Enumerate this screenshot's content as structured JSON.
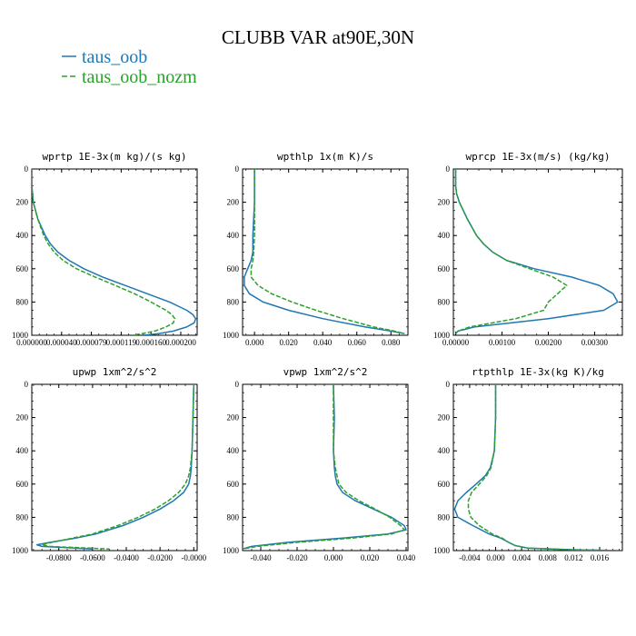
{
  "figure": {
    "title": "CLUBB VAR at90E,30N",
    "legend": [
      {
        "label": "taus_oob",
        "color": "#1f77b4",
        "dash": "solid"
      },
      {
        "label": "taus_oob_nozm",
        "color": "#2ca02c",
        "dash": "dashed"
      }
    ]
  },
  "chart_data": [
    {
      "type": "line",
      "title": "wprtp  1E-3x(m kg)/(s kg)",
      "xlim": [
        0,
        0.000222
      ],
      "ylim": [
        1000,
        0
      ],
      "xticks": [
        0,
        4e-05,
        8e-05,
        0.00012,
        0.00016,
        0.0002
      ],
      "xtick_labels": [
        "0.000000",
        "0.000040",
        "0.000079",
        "0.000119",
        "0.000160",
        "0.000200"
      ],
      "yticks": [
        0,
        200,
        400,
        600,
        800,
        1000
      ],
      "series": [
        {
          "name": "taus_oob",
          "color": "#1f77b4",
          "y": [
            0,
            100,
            200,
            300,
            400,
            450,
            500,
            550,
            600,
            650,
            700,
            750,
            800,
            850,
            875,
            900,
            925,
            950,
            975,
            990,
            1000
          ],
          "x": [
            0,
            0,
            2e-06,
            8e-06,
            1.8e-05,
            2.5e-05,
            3.5e-05,
            5e-05,
            7e-05,
            9.5e-05,
            0.000125,
            0.000155,
            0.000185,
            0.000208,
            0.000216,
            0.00022,
            0.000218,
            0.000208,
            0.00019,
            0.00017,
            0.00015
          ]
        },
        {
          "name": "taus_oob_nozm",
          "color": "#2ca02c",
          "y": [
            0,
            100,
            200,
            300,
            400,
            450,
            500,
            550,
            600,
            650,
            700,
            750,
            800,
            850,
            875,
            900,
            925,
            950,
            975,
            990,
            1000
          ],
          "x": [
            0,
            0,
            2e-06,
            8e-06,
            1.6e-05,
            2.2e-05,
            3e-05,
            4.2e-05,
            6e-05,
            8.5e-05,
            0.000112,
            0.000138,
            0.00016,
            0.00018,
            0.000188,
            0.000192,
            0.00019,
            0.00018,
            0.000165,
            0.000148,
            0.000135
          ]
        }
      ]
    },
    {
      "type": "line",
      "title": "wpthlp  1x(m K)/s",
      "xlim": [
        -0.007,
        0.09
      ],
      "ylim": [
        1000,
        0
      ],
      "xticks": [
        0,
        0.02,
        0.04,
        0.06,
        0.08
      ],
      "xtick_labels": [
        "0.000",
        "0.020",
        "0.040",
        "0.060",
        "0.080"
      ],
      "yticks": [
        0,
        200,
        400,
        600,
        800,
        1000
      ],
      "series": [
        {
          "name": "taus_oob",
          "color": "#1f77b4",
          "y": [
            0,
            100,
            200,
            300,
            400,
            500,
            550,
            600,
            650,
            700,
            750,
            800,
            850,
            900,
            950,
            975,
            990
          ],
          "x": [
            0,
            0,
            0,
            -0.0005,
            -0.001,
            -0.001,
            -0.002,
            -0.004,
            -0.006,
            -0.006,
            -0.003,
            0.005,
            0.02,
            0.04,
            0.065,
            0.08,
            0.088
          ]
        },
        {
          "name": "taus_oob_nozm",
          "color": "#2ca02c",
          "y": [
            0,
            100,
            200,
            300,
            400,
            500,
            550,
            600,
            650,
            700,
            750,
            800,
            850,
            900,
            950,
            975,
            990
          ],
          "x": [
            0,
            0,
            0,
            0,
            0,
            -0.0005,
            -0.001,
            -0.002,
            -0.002,
            0.002,
            0.01,
            0.022,
            0.036,
            0.052,
            0.07,
            0.082,
            0.088
          ]
        }
      ]
    },
    {
      "type": "line",
      "title": "wprcp  1E-3x(m/s) (kg/kg)",
      "xlim": [
        -5e-05,
        0.0036
      ],
      "ylim": [
        1000,
        0
      ],
      "xticks": [
        0,
        0.001,
        0.002,
        0.003
      ],
      "xtick_labels": [
        "0.00000",
        "0.00100",
        "0.00200",
        "0.00300"
      ],
      "yticks": [
        0,
        200,
        400,
        600,
        800,
        1000
      ],
      "series": [
        {
          "name": "taus_oob",
          "color": "#1f77b4",
          "y": [
            0,
            100,
            150,
            200,
            300,
            400,
            450,
            500,
            550,
            600,
            650,
            700,
            750,
            800,
            850,
            900,
            950,
            975,
            990
          ],
          "x": [
            0,
            0,
            2e-05,
            8e-05,
            0.00025,
            0.00045,
            0.0006,
            0.0008,
            0.0011,
            0.0017,
            0.0025,
            0.0031,
            0.0034,
            0.0035,
            0.0032,
            0.002,
            0.0004,
            5e-05,
            0
          ]
        },
        {
          "name": "taus_oob_nozm",
          "color": "#2ca02c",
          "y": [
            0,
            100,
            150,
            200,
            300,
            400,
            450,
            500,
            550,
            600,
            650,
            700,
            750,
            800,
            850,
            900,
            950,
            975,
            990
          ],
          "x": [
            0,
            0,
            2e-05,
            8e-05,
            0.00025,
            0.00045,
            0.0006,
            0.0008,
            0.0011,
            0.0016,
            0.0021,
            0.0024,
            0.0022,
            0.002,
            0.0019,
            0.0013,
            0.0003,
            5e-05,
            0
          ]
        }
      ]
    },
    {
      "type": "line",
      "title": "upwp  1xm^2/s^2",
      "xlim": [
        -0.096,
        0.002
      ],
      "ylim": [
        1000,
        0
      ],
      "xticks": [
        -0.08,
        -0.06,
        -0.04,
        -0.02,
        0
      ],
      "xtick_labels": [
        "-0.0800",
        "-0.0600",
        "-0.0400",
        "-0.0200",
        "-0.0000"
      ],
      "yticks": [
        0,
        200,
        400,
        600,
        800,
        1000
      ],
      "series": [
        {
          "name": "taus_oob",
          "color": "#1f77b4",
          "y": [
            0,
            200,
            400,
            500,
            550,
            600,
            650,
            700,
            750,
            800,
            850,
            900,
            925,
            950,
            965,
            975,
            990
          ],
          "x": [
            0,
            -0.0005,
            -0.001,
            -0.0015,
            -0.002,
            -0.003,
            -0.006,
            -0.012,
            -0.02,
            -0.03,
            -0.042,
            -0.058,
            -0.07,
            -0.085,
            -0.093,
            -0.09,
            -0.06
          ]
        },
        {
          "name": "taus_oob_nozm",
          "color": "#2ca02c",
          "y": [
            0,
            200,
            400,
            500,
            550,
            600,
            650,
            700,
            750,
            800,
            850,
            900,
            925,
            950,
            965,
            975,
            990
          ],
          "x": [
            0,
            -0.0005,
            -0.001,
            -0.002,
            -0.003,
            -0.005,
            -0.009,
            -0.015,
            -0.023,
            -0.033,
            -0.045,
            -0.06,
            -0.072,
            -0.084,
            -0.09,
            -0.086,
            -0.05
          ]
        }
      ]
    },
    {
      "type": "line",
      "title": "vpwp  1xm^2/s^2",
      "xlim": [
        -0.05,
        0.041
      ],
      "ylim": [
        1000,
        0
      ],
      "xticks": [
        -0.04,
        -0.02,
        0,
        0.02,
        0.04
      ],
      "xtick_labels": [
        "-0.040",
        "-0.020",
        "0.000",
        "0.020",
        "0.040"
      ],
      "yticks": [
        0,
        200,
        400,
        600,
        800,
        1000
      ],
      "series": [
        {
          "name": "taus_oob",
          "color": "#1f77b4",
          "y": [
            0,
            200,
            400,
            500,
            550,
            600,
            650,
            700,
            750,
            800,
            850,
            875,
            900,
            925,
            950,
            975,
            990
          ],
          "x": [
            0,
            0.0005,
            0,
            0.0005,
            0.001,
            0.002,
            0.005,
            0.012,
            0.022,
            0.032,
            0.039,
            0.04,
            0.03,
            0.005,
            -0.025,
            -0.045,
            -0.05
          ]
        },
        {
          "name": "taus_oob_nozm",
          "color": "#2ca02c",
          "y": [
            0,
            200,
            400,
            500,
            550,
            600,
            650,
            700,
            750,
            800,
            850,
            875,
            900,
            925,
            950,
            975,
            990
          ],
          "x": [
            0,
            0,
            0,
            0.001,
            0.002,
            0.003,
            0.007,
            0.014,
            0.023,
            0.031,
            0.037,
            0.039,
            0.032,
            0.01,
            -0.02,
            -0.042,
            -0.05
          ]
        }
      ]
    },
    {
      "type": "line",
      "title": "rtpthlp  1E-3x(kg K)/kg",
      "xlim": [
        -0.0065,
        0.0195
      ],
      "ylim": [
        1000,
        0
      ],
      "xticks": [
        -0.004,
        0,
        0.004,
        0.008,
        0.012,
        0.016
      ],
      "xtick_labels": [
        "-0.004",
        "0.000",
        "0.004",
        "0.008",
        "0.012",
        "0.016"
      ],
      "yticks": [
        0,
        200,
        400,
        600,
        800,
        1000
      ],
      "series": [
        {
          "name": "taus_oob",
          "color": "#1f77b4",
          "y": [
            0,
            200,
            400,
            500,
            550,
            600,
            650,
            700,
            750,
            800,
            850,
            900,
            925,
            950,
            970,
            985,
            995,
            1000
          ],
          "x": [
            0,
            0,
            -0.0002,
            -0.0008,
            -0.0016,
            -0.003,
            -0.0045,
            -0.0058,
            -0.0063,
            -0.0058,
            -0.0035,
            -0.001,
            0.0008,
            0.002,
            0.003,
            0.005,
            0.012,
            0.019
          ]
        },
        {
          "name": "taus_oob_nozm",
          "color": "#2ca02c",
          "y": [
            0,
            200,
            400,
            500,
            550,
            600,
            650,
            700,
            750,
            800,
            850,
            900,
            925,
            950,
            970,
            985,
            995,
            1000
          ],
          "x": [
            0,
            0,
            -0.0002,
            -0.0007,
            -0.0014,
            -0.0025,
            -0.0037,
            -0.0042,
            -0.0042,
            -0.0038,
            -0.0025,
            -0.0005,
            0.001,
            0.002,
            0.003,
            0.005,
            0.012,
            0.019
          ]
        }
      ]
    }
  ]
}
